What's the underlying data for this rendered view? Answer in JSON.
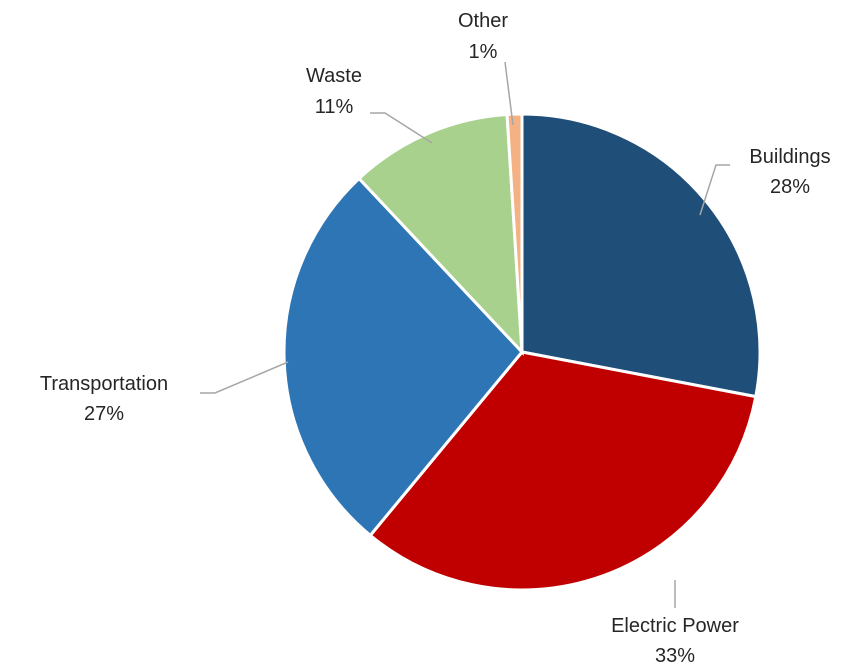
{
  "chart_data": {
    "type": "pie",
    "title": "",
    "legend": "none",
    "slices": [
      {
        "name": "Buildings",
        "value": 28,
        "label": "28%",
        "color": "#1f4e79"
      },
      {
        "name": "Electric Power",
        "value": 33,
        "label": "33%",
        "color": "#c00000"
      },
      {
        "name": "Transportation",
        "value": 27,
        "label": "27%",
        "color": "#2e75b6"
      },
      {
        "name": "Waste",
        "value": 11,
        "label": "11%",
        "color": "#a9d18e"
      },
      {
        "name": "Other",
        "value": 1,
        "label": "1%",
        "color": "#f4b183"
      }
    ]
  }
}
